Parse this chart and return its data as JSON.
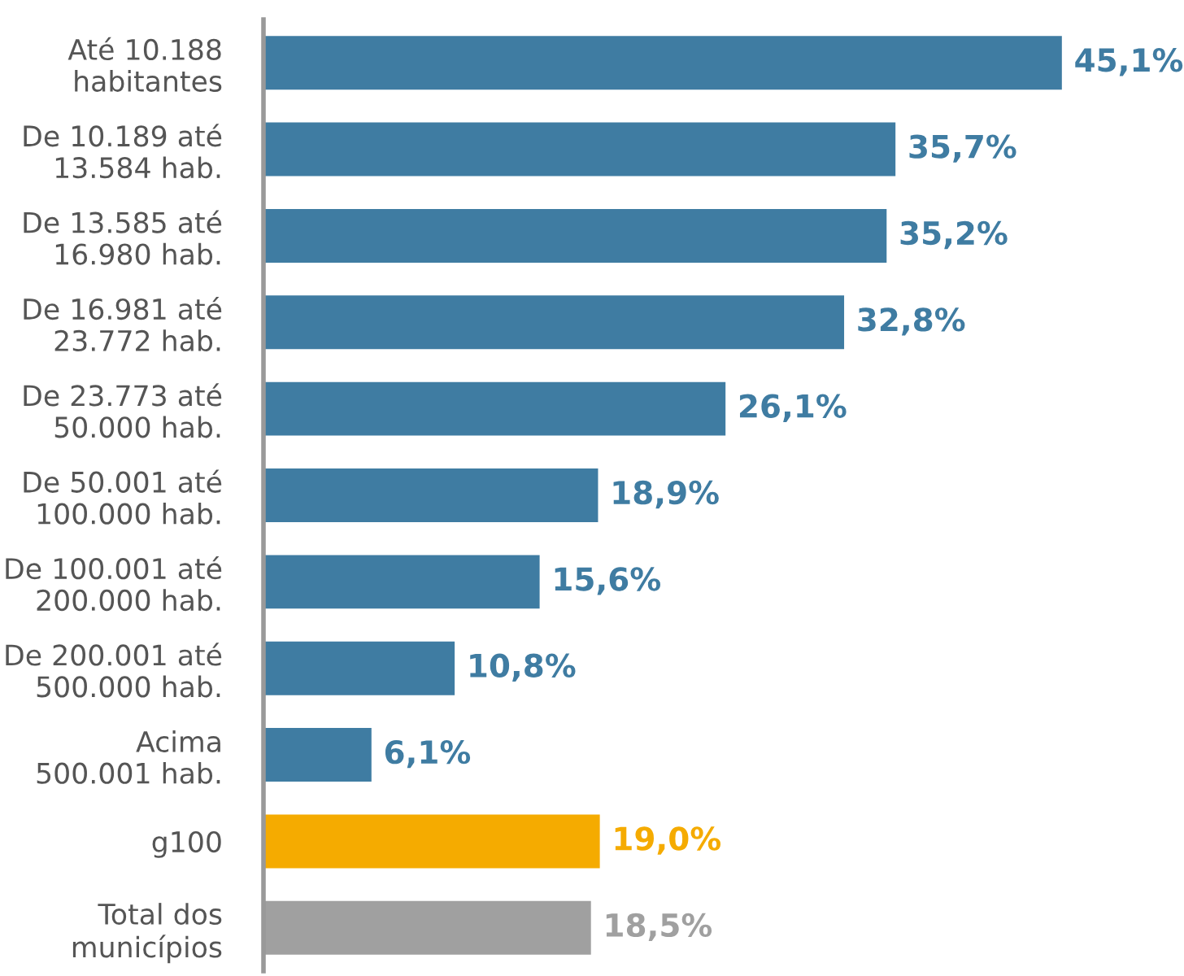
{
  "chart_data": {
    "type": "bar",
    "orientation": "horizontal",
    "categories": [
      "Até 10.188\nhabitantes",
      "De 10.189 até\n13.584 hab.",
      "De 13.585 até\n16.980 hab.",
      "De 16.981 até\n23.772 hab.",
      "De 23.773 até\n50.000 hab.",
      "De 50.001 até\n100.000 hab.",
      "De 100.001 até\n200.000 hab.",
      "De 200.001 até\n500.000 hab.",
      "Acima\n500.001 hab.",
      "g100",
      "Total dos\nmunicípios"
    ],
    "values": [
      45.1,
      35.7,
      35.2,
      32.8,
      26.1,
      18.9,
      15.6,
      10.8,
      6.1,
      19.0,
      18.5
    ],
    "value_labels": [
      "45,1%",
      "35,7%",
      "35,2%",
      "32,8%",
      "26,1%",
      "18,9%",
      "15,6%",
      "10,8%",
      "6,1%",
      "19,0%",
      "18,5%"
    ],
    "colors": [
      "#3f7ca2",
      "#3f7ca2",
      "#3f7ca2",
      "#3f7ca2",
      "#3f7ca2",
      "#3f7ca2",
      "#3f7ca2",
      "#3f7ca2",
      "#3f7ca2",
      "#f5ab00",
      "#a0a0a0"
    ],
    "grid": false,
    "legend": false
  }
}
